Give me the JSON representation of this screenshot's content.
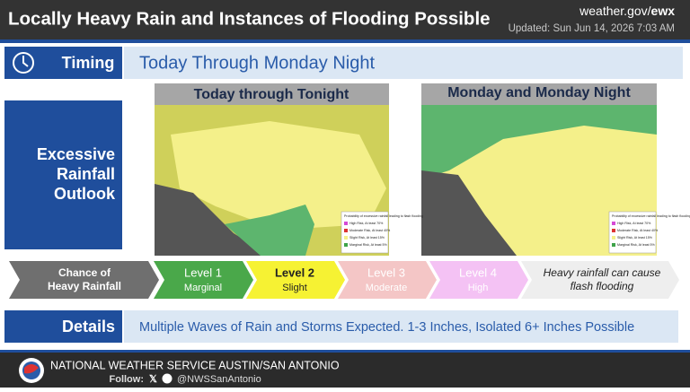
{
  "header": {
    "title": "Locally Heavy Rain and Instances of Flooding Possible",
    "site_prefix": "weather.gov/",
    "site_office": "ewx",
    "updated": "Updated: Sun Jun 14, 2026 7:03 AM"
  },
  "timing": {
    "label": "Timing",
    "text": "Today Through Monday Night"
  },
  "outlook": {
    "label_lines": [
      "Excessive",
      "Rainfall",
      "Outlook"
    ]
  },
  "maps": [
    {
      "title": "Today through Tonight"
    },
    {
      "title": "Monday and Monday Night"
    }
  ],
  "legend": {
    "title": "Probability of excessive rainfall leading to flash flooding",
    "items": [
      "High Risk, At least 70%",
      "Moderate Risk, At least 40%",
      "Slight Risk, At least 15%",
      "Marginal Risk, At least 5%"
    ]
  },
  "levels": {
    "intro_lines": [
      "Chance of",
      "Heavy Rainfall"
    ],
    "items": [
      {
        "level": "Level 1",
        "name": "Marginal"
      },
      {
        "level": "Level 2",
        "name": "Slight"
      },
      {
        "level": "Level 3",
        "name": "Moderate"
      },
      {
        "level": "Level 4",
        "name": "High"
      }
    ],
    "impact_lines": [
      "Heavy rainfall can cause",
      "flash flooding"
    ]
  },
  "details": {
    "label": "Details",
    "text": "Multiple Waves of Rain and Storms Expected. 1-3 Inches, Isolated 6+ Inches Possible"
  },
  "footer": {
    "office": "NATIONAL WEATHER SERVICE AUSTIN/SAN ANTONIO",
    "follow": "Follow:",
    "handle": "@NWSSanAntonio"
  }
}
